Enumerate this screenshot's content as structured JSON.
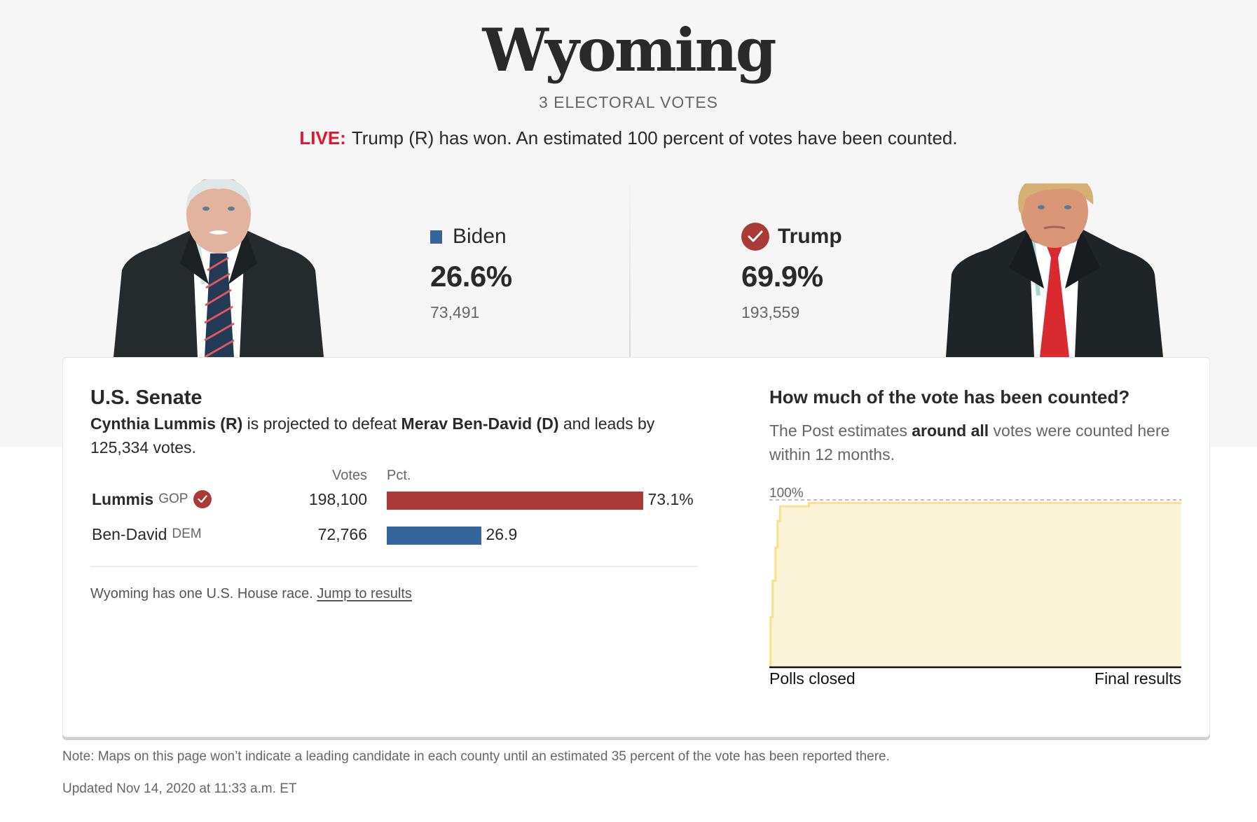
{
  "header": {
    "state": "Wyoming",
    "electoral_votes": "3 ELECTORAL VOTES",
    "live_tag": "LIVE:",
    "live_text": "Trump (R) has won. An estimated 100 percent of votes have been counted."
  },
  "candidates": [
    {
      "name": "Biden",
      "party": "D",
      "pct": "26.6%",
      "votes": "73,491",
      "winner": false,
      "color": "#36659c",
      "icon": "blue-square-icon"
    },
    {
      "name": "Trump",
      "party": "R",
      "pct": "69.9%",
      "votes": "193,559",
      "winner": true,
      "color": "#a93a36",
      "icon": "check-circle-icon"
    }
  ],
  "senate": {
    "title": "U.S. Senate",
    "summary": {
      "winner": "Cynthia Lummis (R)",
      "mid": " is projected to defeat ",
      "loser": "Merav Ben-David (D)",
      "tail": " and leads by 125,334 votes."
    },
    "columns": {
      "votes": "Votes",
      "pct": "Pct."
    },
    "rows": [
      {
        "name": "Lummis",
        "party": "GOP",
        "votes": "198,100",
        "pct": "73.1%",
        "pct_value": 73.1,
        "winner": true,
        "color": "#a93a36"
      },
      {
        "name": "Ben-David",
        "party": "DEM",
        "votes": "72,766",
        "pct": "26.9",
        "pct_value": 26.9,
        "winner": false,
        "color": "#36659c"
      }
    ],
    "house_note": "Wyoming has one U.S. House race.",
    "house_link": "Jump to results"
  },
  "vote_count": {
    "title": "How much of the vote has been counted?",
    "desc_pre": "The Post estimates ",
    "desc_bold": "around all",
    "desc_post": " votes were counted here within 12 months."
  },
  "chart_data": {
    "type": "area",
    "title": "How much of the vote has been counted?",
    "xlabel": "",
    "ylabel": "",
    "x_tick_labels": [
      "Polls closed",
      "Final results"
    ],
    "y_tick_labels": [
      "100%"
    ],
    "ylim": [
      0,
      100
    ],
    "grid": false,
    "reference_line": {
      "y": 100,
      "style": "dashed",
      "label": "100%"
    },
    "x": [
      0,
      0.3,
      0.8,
      1.5,
      2.0,
      2.6,
      9.6,
      9.6,
      100
    ],
    "series": [
      {
        "name": "Estimated vote counted (%)",
        "values": [
          0,
          30,
          52,
          72,
          88,
          97,
          97,
          99,
          99
        ]
      }
    ],
    "colors": {
      "fill": "#fbf4d8",
      "line": "#fbe08a",
      "reference": "#aaaaaa"
    }
  },
  "footer": {
    "note": "Note: Maps on this page won’t indicate a leading candidate in each county until an estimated 35 percent of the vote has been reported there.",
    "updated": "Updated Nov 14, 2020 at 11:33 a.m. ET"
  }
}
